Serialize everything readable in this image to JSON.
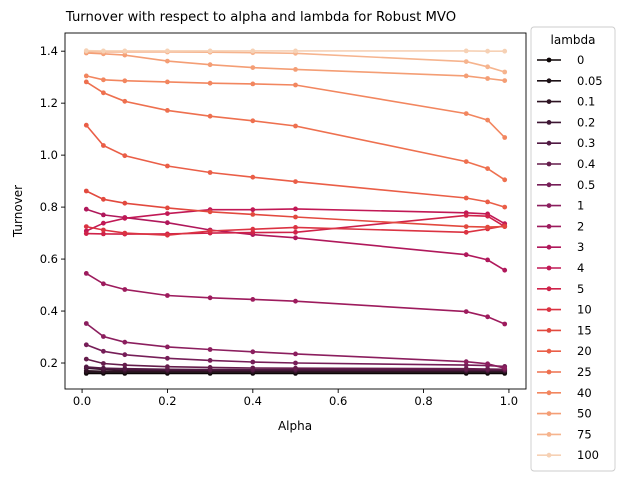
{
  "chart_data": {
    "type": "line",
    "title": "Turnover with respect to alpha and lambda for Robust MVO",
    "xlabel": "Alpha",
    "ylabel": "Turnover",
    "xlim": [
      -0.04,
      1.04
    ],
    "ylim": [
      0.1,
      1.47
    ],
    "x_ticks": [
      "0.0",
      "0.2",
      "0.4",
      "0.6",
      "0.8",
      "1.0"
    ],
    "y_ticks": [
      "0.2",
      "0.4",
      "0.6",
      "0.8",
      "1.0",
      "1.2",
      "1.4"
    ],
    "grid": false,
    "legend": {
      "title": "lambda",
      "placement": "outside-right"
    },
    "x": [
      0.01,
      0.05,
      0.1,
      0.2,
      0.3,
      0.4,
      0.5,
      0.9,
      0.95,
      0.99
    ],
    "series": [
      {
        "name": "0",
        "color": "#0b0405",
        "values": [
          0.16,
          0.16,
          0.16,
          0.16,
          0.16,
          0.16,
          0.16,
          0.16,
          0.16,
          0.16
        ]
      },
      {
        "name": "0.05",
        "color": "#1c1016",
        "values": [
          0.165,
          0.165,
          0.165,
          0.165,
          0.165,
          0.165,
          0.165,
          0.165,
          0.165,
          0.165
        ]
      },
      {
        "name": "0.1",
        "color": "#2d1322",
        "values": [
          0.17,
          0.168,
          0.168,
          0.168,
          0.168,
          0.168,
          0.168,
          0.168,
          0.168,
          0.168
        ]
      },
      {
        "name": "0.2",
        "color": "#3d1633",
        "values": [
          0.18,
          0.175,
          0.173,
          0.172,
          0.172,
          0.172,
          0.172,
          0.171,
          0.171,
          0.171
        ]
      },
      {
        "name": "0.3",
        "color": "#511a43",
        "values": [
          0.185,
          0.18,
          0.178,
          0.176,
          0.175,
          0.175,
          0.175,
          0.174,
          0.173,
          0.173
        ]
      },
      {
        "name": "0.4",
        "color": "#651d4c",
        "values": [
          0.215,
          0.198,
          0.192,
          0.186,
          0.183,
          0.181,
          0.18,
          0.178,
          0.177,
          0.176
        ]
      },
      {
        "name": "0.5",
        "color": "#761e58",
        "values": [
          0.27,
          0.245,
          0.232,
          0.218,
          0.21,
          0.204,
          0.2,
          0.192,
          0.19,
          0.187
        ]
      },
      {
        "name": "1",
        "color": "#8b1e5e",
        "values": [
          0.352,
          0.302,
          0.28,
          0.262,
          0.252,
          0.243,
          0.235,
          0.205,
          0.197,
          0.18
        ]
      },
      {
        "name": "2",
        "color": "#9d1b5d",
        "values": [
          0.545,
          0.505,
          0.483,
          0.46,
          0.451,
          0.445,
          0.438,
          0.398,
          0.378,
          0.35
        ]
      },
      {
        "name": "3",
        "color": "#b0185b",
        "values": [
          0.792,
          0.77,
          0.76,
          0.74,
          0.712,
          0.694,
          0.682,
          0.617,
          0.597,
          0.557
        ]
      },
      {
        "name": "4",
        "color": "#c11855",
        "values": [
          0.708,
          0.738,
          0.757,
          0.775,
          0.79,
          0.79,
          0.793,
          0.778,
          0.774,
          0.736
        ]
      },
      {
        "name": "5",
        "color": "#cf2249",
        "values": [
          0.698,
          0.697,
          0.696,
          0.697,
          0.7,
          0.702,
          0.703,
          0.768,
          0.765,
          0.725
        ]
      },
      {
        "name": "10",
        "color": "#db3342",
        "values": [
          0.725,
          0.712,
          0.7,
          0.692,
          0.708,
          0.715,
          0.722,
          0.703,
          0.716,
          0.728
        ]
      },
      {
        "name": "15",
        "color": "#e2493e",
        "values": [
          0.862,
          0.83,
          0.815,
          0.797,
          0.782,
          0.772,
          0.762,
          0.725,
          0.723,
          0.725
        ]
      },
      {
        "name": "20",
        "color": "#ea5e47",
        "values": [
          1.115,
          1.037,
          0.998,
          0.958,
          0.933,
          0.915,
          0.898,
          0.835,
          0.82,
          0.8
        ]
      },
      {
        "name": "25",
        "color": "#ee704f",
        "values": [
          1.282,
          1.24,
          1.207,
          1.172,
          1.15,
          1.132,
          1.112,
          0.975,
          0.948,
          0.905
        ]
      },
      {
        "name": "40",
        "color": "#f2865f",
        "values": [
          1.305,
          1.29,
          1.286,
          1.282,
          1.277,
          1.274,
          1.27,
          1.16,
          1.135,
          1.068
        ]
      },
      {
        "name": "50",
        "color": "#f49e75",
        "values": [
          1.393,
          1.39,
          1.385,
          1.362,
          1.348,
          1.337,
          1.33,
          1.305,
          1.295,
          1.287
        ]
      },
      {
        "name": "75",
        "color": "#f6b48e",
        "values": [
          1.398,
          1.397,
          1.397,
          1.397,
          1.396,
          1.394,
          1.392,
          1.36,
          1.34,
          1.32
        ]
      },
      {
        "name": "100",
        "color": "#f6d1b5",
        "values": [
          1.402,
          1.401,
          1.401,
          1.401,
          1.401,
          1.401,
          1.401,
          1.401,
          1.4,
          1.4
        ]
      }
    ]
  }
}
